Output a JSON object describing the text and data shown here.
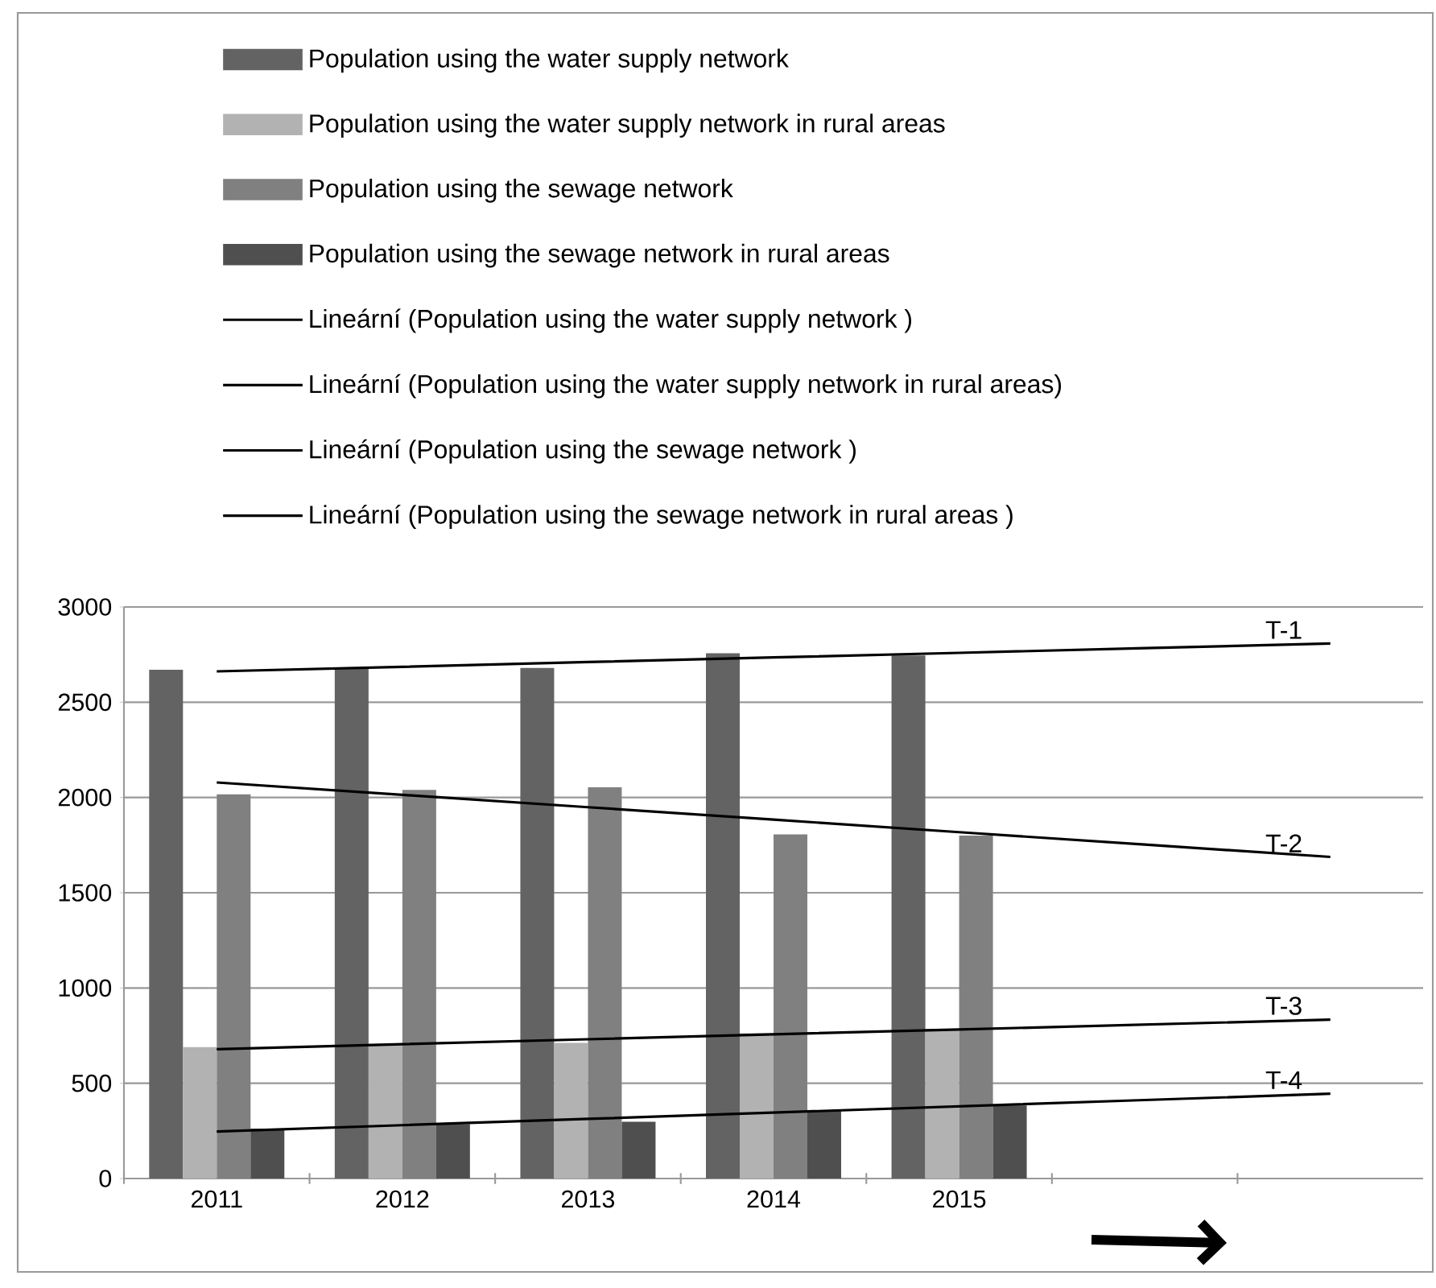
{
  "chart_data": {
    "type": "bar",
    "categories": [
      "2011",
      "2012",
      "2013",
      "2014",
      "2015",
      null,
      null
    ],
    "series": [
      {
        "name": "Population using the water supply network",
        "color": "#636363",
        "values": [
          2670,
          2680,
          2680,
          2757,
          2745,
          null,
          null
        ]
      },
      {
        "name": "Population using the water supply network in rural areas",
        "color": "#b2b2b2",
        "values": [
          690,
          707,
          712,
          763,
          786,
          null,
          null
        ]
      },
      {
        "name": "Population using the sewage network",
        "color": "#808080",
        "values": [
          2017,
          2040,
          2054,
          1806,
          1800,
          null,
          null
        ]
      },
      {
        "name": "Population using the sewage network in rural areas",
        "color": "#4f4f4f",
        "values": [
          262,
          285,
          298,
          355,
          383,
          null,
          null
        ]
      },
      {
        "name": "Lineární (Population using the water supply network )",
        "type": "line",
        "color": "#000000",
        "values": [
          2662,
          2686,
          2711,
          2735,
          2759,
          2784,
          2808
        ]
      },
      {
        "name": "Lineární (Population using the water supply network in rural areas)",
        "type": "line",
        "color": "#000000",
        "values": [
          2079,
          2014,
          1949,
          1884,
          1818,
          1753,
          1688
        ]
      },
      {
        "name": "Lineární (Population using the sewage network )",
        "type": "line",
        "color": "#000000",
        "values": [
          679,
          705,
          731,
          757,
          782,
          808,
          834
        ]
      },
      {
        "name": "Lineární (Population using the sewage network in rural areas )",
        "type": "line",
        "color": "#000000",
        "values": [
          247,
          280,
          313,
          346,
          379,
          412,
          445
        ]
      }
    ],
    "ylim": [
      0,
      3000
    ],
    "yticks": [
      0,
      500,
      1000,
      1500,
      2000,
      2500,
      3000
    ],
    "grid": "y",
    "legend": "top",
    "annotations": [
      "T-1",
      "T-2",
      "T-3",
      "T-4"
    ]
  }
}
